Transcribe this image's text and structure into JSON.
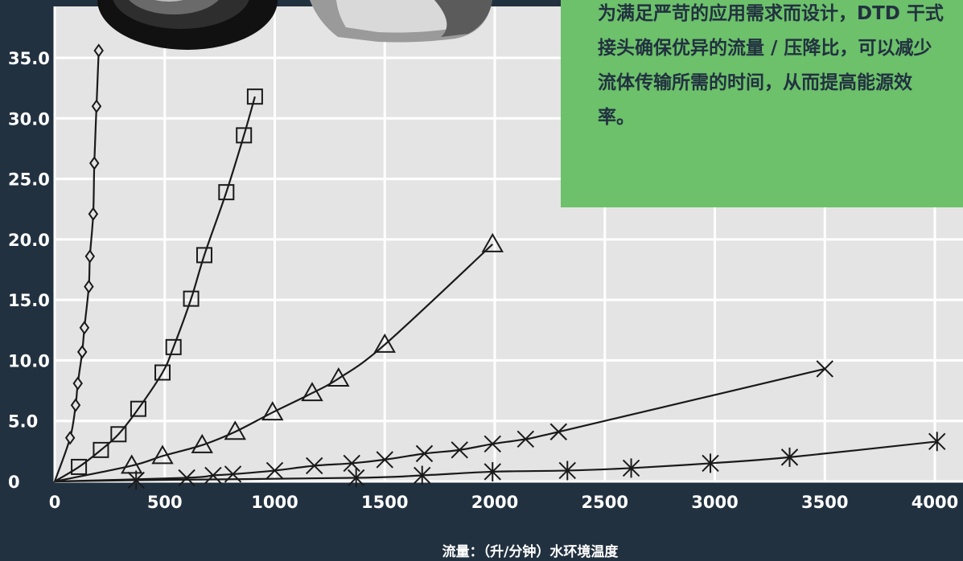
{
  "colors": {
    "background": "#223140",
    "plot_area": "#e4e4e4",
    "grid": "#ffffff",
    "curve": "#1a1a1a",
    "callout": "#6cc16a",
    "callout_text": "#223140"
  },
  "callout": {
    "text": "为满足严苛的应用需求而设计，DTD 干式接头确保优异的流量 / 压降比，可以减少流体传输所需的时间，从而提高能源效率。"
  },
  "product_photo": {
    "icon": "coupling-photo"
  },
  "chart_data": {
    "type": "scatter",
    "title": "",
    "xlabel": "流量：（升/分钟）水环境温度",
    "ylabel": "",
    "xlim": [
      0,
      4000
    ],
    "ylim": [
      0,
      35.0
    ],
    "x_ticks": [
      "0",
      "500",
      "1000",
      "1500",
      "2000",
      "2500",
      "3000",
      "3500",
      "4000"
    ],
    "y_ticks": [
      "0",
      "5.0",
      "10.0",
      "15.0",
      "20.0",
      "25.0",
      "30.0",
      "35.0"
    ],
    "grid": true,
    "series": [
      {
        "marker": "diamond",
        "x": [
          70,
          95,
          105,
          125,
          135,
          155,
          160,
          175,
          180,
          190,
          200
        ],
        "y": [
          3.6,
          6.3,
          8.1,
          10.7,
          12.7,
          16.1,
          18.6,
          22.1,
          26.3,
          31.0,
          35.6
        ]
      },
      {
        "marker": "square",
        "x": [
          110,
          210,
          290,
          380,
          490,
          540,
          620,
          680,
          780,
          860,
          910
        ],
        "y": [
          1.2,
          2.6,
          3.9,
          6.0,
          9.0,
          11.1,
          15.1,
          18.7,
          23.9,
          28.6,
          31.8
        ]
      },
      {
        "marker": "triangle",
        "x": [
          350,
          490,
          670,
          820,
          990,
          1170,
          1290,
          1500,
          1990
        ],
        "y": [
          1.3,
          2.1,
          3.0,
          4.1,
          5.7,
          7.3,
          8.5,
          11.3,
          19.6
        ]
      },
      {
        "marker": "x",
        "x": [
          600,
          720,
          810,
          1000,
          1180,
          1350,
          1500,
          1680,
          1840,
          1990,
          2140,
          2290,
          3500
        ],
        "y": [
          0.3,
          0.5,
          0.6,
          0.9,
          1.3,
          1.5,
          1.8,
          2.3,
          2.6,
          3.1,
          3.5,
          4.1,
          9.3
        ]
      },
      {
        "marker": "asterisk",
        "x": [
          370,
          1370,
          1670,
          1990,
          2330,
          2620,
          2980,
          3340,
          4010
        ],
        "y": [
          0.1,
          0.3,
          0.5,
          0.8,
          0.9,
          1.1,
          1.5,
          2.0,
          3.3
        ]
      }
    ]
  }
}
